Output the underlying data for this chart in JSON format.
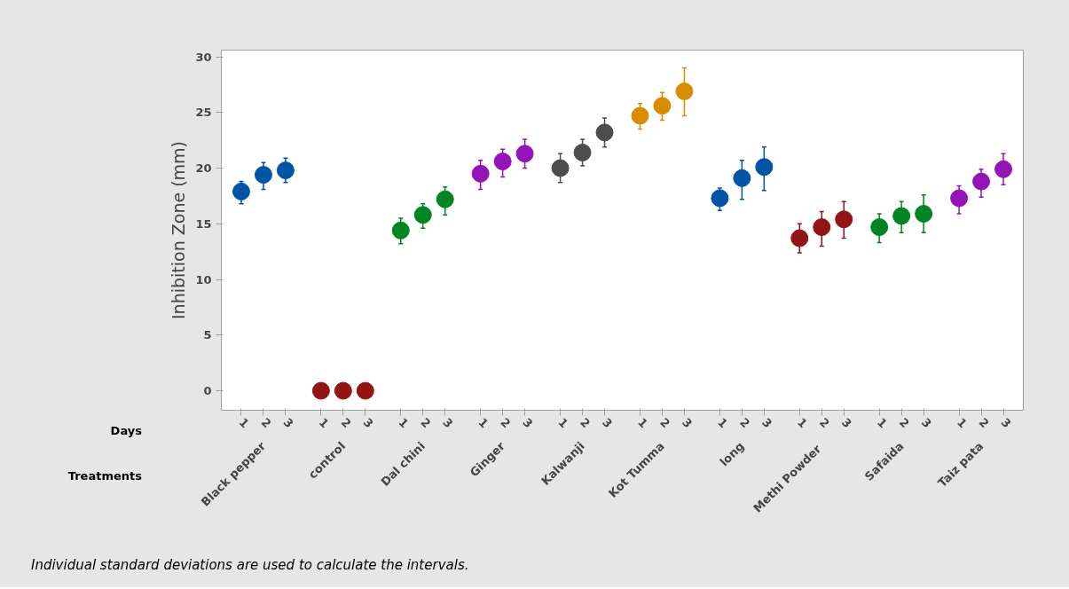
{
  "chart_data": {
    "type": "scatter",
    "ylabel": "Inhibition Zone (mm)",
    "xlabel": "Days",
    "categories": [
      "1",
      "2",
      "3",
      "1",
      "2",
      "3",
      "1",
      "2",
      "3",
      "1",
      "2",
      "3",
      "1",
      "2",
      "3",
      "1",
      "2",
      "3",
      "1",
      "2",
      "3",
      "1",
      "2",
      "3",
      "1",
      "2",
      "3",
      "1",
      "2",
      "3"
    ],
    "series": [
      {
        "colors": [
          "#0054a6",
          "#0054a6",
          "#0054a6",
          "#921414",
          "#921414",
          "#921414",
          "#008522",
          "#008522",
          "#008522",
          "#9414b8",
          "#9414b8",
          "#9414b8",
          "#4d4d4d",
          "#4d4d4d",
          "#4d4d4d",
          "#d98c00",
          "#d98c00",
          "#d98c00",
          "#0054a6",
          "#0054a6",
          "#0054a6",
          "#921414",
          "#921414",
          "#921414",
          "#008522",
          "#008522",
          "#008522",
          "#9414b8",
          "#9414b8",
          "#9414b8"
        ],
        "values": [
          17.9,
          19.4,
          19.8,
          0,
          0,
          0,
          14.4,
          15.8,
          17.2,
          19.5,
          20.6,
          21.3,
          20.0,
          21.4,
          23.2,
          24.7,
          25.6,
          26.9,
          17.3,
          19.1,
          20.1,
          13.7,
          14.7,
          15.4,
          14.7,
          15.7,
          15.9,
          17.3,
          18.8,
          19.9
        ],
        "errors": [
          [
            16.8,
            18.8
          ],
          [
            18.1,
            20.5
          ],
          [
            18.7,
            20.9
          ],
          null,
          null,
          null,
          [
            13.2,
            15.5
          ],
          [
            14.6,
            16.8
          ],
          [
            15.8,
            18.3
          ],
          [
            18.1,
            20.7
          ],
          [
            19.2,
            21.7
          ],
          [
            20.0,
            22.6
          ],
          [
            18.7,
            21.3
          ],
          [
            20.2,
            22.6
          ],
          [
            21.9,
            24.5
          ],
          [
            23.5,
            25.8
          ],
          [
            24.3,
            26.8
          ],
          [
            24.7,
            29.0
          ],
          [
            16.2,
            18.2
          ],
          [
            17.2,
            20.7
          ],
          [
            18.0,
            21.9
          ],
          [
            12.4,
            15.0
          ],
          [
            13.0,
            16.1
          ],
          [
            13.7,
            17.0
          ],
          [
            13.3,
            15.9
          ],
          [
            14.2,
            17.0
          ],
          [
            14.2,
            17.6
          ],
          [
            15.9,
            18.4
          ],
          [
            17.4,
            19.9
          ],
          [
            18.5,
            21.3
          ]
        ]
      }
    ],
    "ylim": [
      -1.75,
      30.6
    ],
    "yticks": [
      0,
      5,
      10,
      15,
      20,
      25,
      30
    ],
    "grid": false,
    "marker": "circle",
    "annotations": [
      "Individual standard deviations are used to calculate the intervals.",
      "Treatments",
      "Black pepper",
      "control",
      "Dal chini",
      "Ginger",
      "Kalwanji",
      "Kot Tumma",
      "long",
      "Methi  Powder",
      "Safaida",
      "Taiz pata"
    ]
  }
}
